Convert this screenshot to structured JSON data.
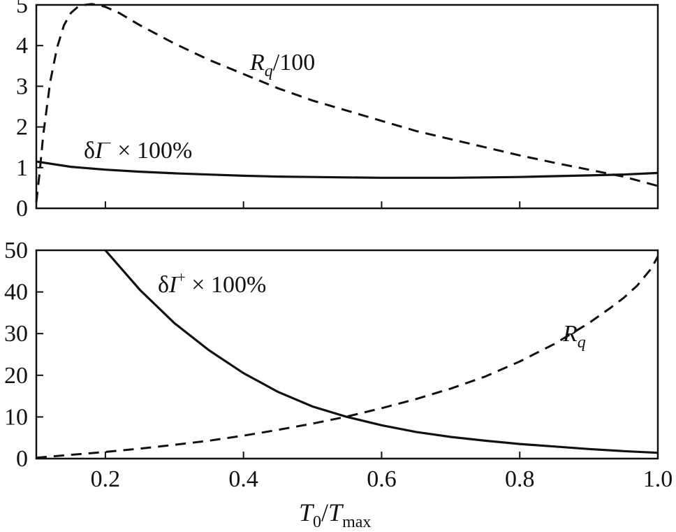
{
  "chart_data": [
    {
      "type": "line",
      "panel": "top",
      "xlim": [
        0.1,
        1.0
      ],
      "ylim": [
        0,
        5
      ],
      "yticks": [
        "0",
        "1",
        "2",
        "3",
        "4",
        "5"
      ],
      "xticks": [
        0.2,
        0.4,
        0.6,
        0.8
      ],
      "series": [
        {
          "name_parts": [
            "δ",
            "I",
            "−",
            " × 100%"
          ],
          "style": "solid",
          "x": [
            0.1,
            0.15,
            0.2,
            0.25,
            0.3,
            0.35,
            0.4,
            0.45,
            0.5,
            0.55,
            0.6,
            0.65,
            0.7,
            0.75,
            0.8,
            0.85,
            0.9,
            0.95,
            1.0
          ],
          "y": [
            1.15,
            1.02,
            0.95,
            0.9,
            0.86,
            0.83,
            0.8,
            0.78,
            0.77,
            0.76,
            0.75,
            0.75,
            0.75,
            0.76,
            0.77,
            0.79,
            0.81,
            0.83,
            0.87
          ]
        },
        {
          "name_parts": [
            "R",
            "q",
            "/100"
          ],
          "style": "dashed",
          "x": [
            0.1,
            0.105,
            0.11,
            0.12,
            0.13,
            0.14,
            0.15,
            0.16,
            0.17,
            0.18,
            0.19,
            0.2,
            0.22,
            0.25,
            0.3,
            0.35,
            0.4,
            0.45,
            0.5,
            0.55,
            0.6,
            0.65,
            0.7,
            0.75,
            0.8,
            0.85,
            0.9,
            0.95,
            1.0
          ],
          "y": [
            0.15,
            0.9,
            1.8,
            3.1,
            3.95,
            4.5,
            4.8,
            4.95,
            5.0,
            5.02,
            5.0,
            4.95,
            4.8,
            4.5,
            4.05,
            3.65,
            3.3,
            2.95,
            2.65,
            2.4,
            2.15,
            1.9,
            1.7,
            1.5,
            1.3,
            1.12,
            0.95,
            0.78,
            0.55
          ]
        }
      ],
      "annotations": {
        "dI_minus": [
          "δ",
          "I",
          "−",
          " × 100%"
        ],
        "Rq_over_100": [
          "R",
          "q",
          "/100"
        ]
      }
    },
    {
      "type": "line",
      "panel": "bottom",
      "xlim": [
        0.1,
        1.0
      ],
      "ylim": [
        0,
        50
      ],
      "yticks": [
        "0",
        "10",
        "20",
        "30",
        "40",
        "50"
      ],
      "xticks": [
        0.2,
        0.4,
        0.6,
        0.8,
        1.0
      ],
      "xtick_labels": [
        "0.2",
        "0.4",
        "0.6",
        "0.8",
        "1.0"
      ],
      "series": [
        {
          "name_parts": [
            "δ",
            "I",
            "+",
            " × 100%"
          ],
          "style": "solid",
          "x": [
            0.2,
            0.25,
            0.3,
            0.35,
            0.4,
            0.45,
            0.5,
            0.55,
            0.6,
            0.65,
            0.7,
            0.75,
            0.8,
            0.85,
            0.9,
            0.95,
            1.0
          ],
          "y": [
            50,
            40.5,
            32.5,
            26,
            20.5,
            16,
            12.5,
            10,
            8,
            6.4,
            5.2,
            4.3,
            3.5,
            2.9,
            2.3,
            1.8,
            1.4
          ]
        },
        {
          "name_parts": [
            "R",
            "q"
          ],
          "style": "dashed",
          "x": [
            0.1,
            0.15,
            0.2,
            0.25,
            0.3,
            0.35,
            0.4,
            0.45,
            0.5,
            0.55,
            0.6,
            0.65,
            0.7,
            0.75,
            0.8,
            0.85,
            0.9,
            0.93,
            0.95,
            0.97,
            0.98,
            0.99,
            1.0
          ],
          "y": [
            0.2,
            0.9,
            1.6,
            2.4,
            3.3,
            4.3,
            5.5,
            6.9,
            8.4,
            10.1,
            12.1,
            14.3,
            16.8,
            19.7,
            23.3,
            27.5,
            32.5,
            36,
            38.5,
            41.5,
            43.5,
            45.5,
            48.5
          ]
        }
      ],
      "annotations": {
        "dI_plus": [
          "δ",
          "I",
          "+",
          " × 100%"
        ],
        "Rq": [
          "R",
          "q"
        ]
      },
      "xlabel_parts": [
        "T",
        "0",
        "/",
        "T",
        "max"
      ]
    }
  ]
}
